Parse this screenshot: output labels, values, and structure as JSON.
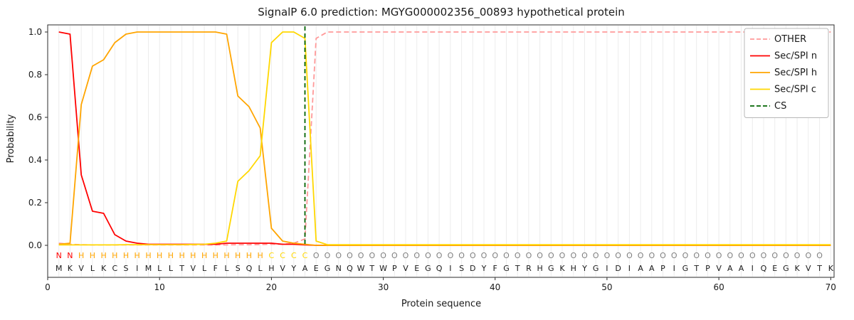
{
  "chart_data": {
    "type": "line",
    "title": "SignalP 6.0 prediction: MGYG000002356_00893 hypothetical protein",
    "xlabel": "Protein sequence",
    "ylabel": "Probability",
    "xlim": [
      0,
      70
    ],
    "ylim": [
      0,
      1
    ],
    "position_range": [
      1,
      70
    ],
    "grid": "vertical line per residue",
    "legend_position": "upper right",
    "x_ticks": [
      0,
      10,
      20,
      30,
      40,
      50,
      60,
      70
    ],
    "y_ticks": [
      0.0,
      0.2,
      0.4,
      0.6,
      0.8,
      1.0
    ],
    "colors": {
      "grid": "#ececec",
      "frame": "#2b2b2b"
    },
    "series": [
      {
        "name": "OTHER",
        "color": "#ff9999",
        "style": "dashed",
        "values": [
          0.01,
          0.005,
          0.003,
          0.002,
          0.002,
          0.002,
          0.002,
          0.002,
          0.002,
          0.002,
          0.002,
          0.002,
          0.002,
          0.002,
          0.002,
          0.002,
          0.003,
          0.003,
          0.004,
          0.005,
          0.005,
          0.01,
          0.03,
          0.97,
          1.0,
          1.0,
          1.0,
          1.0,
          1.0,
          1.0,
          1.0,
          1.0,
          1.0,
          1.0,
          1.0,
          1.0,
          1.0,
          1.0,
          1.0,
          1.0,
          1.0,
          1.0,
          1.0,
          1.0,
          1.0,
          1.0,
          1.0,
          1.0,
          1.0,
          1.0,
          1.0,
          1.0,
          1.0,
          1.0,
          1.0,
          1.0,
          1.0,
          1.0,
          1.0,
          1.0,
          1.0,
          1.0,
          1.0,
          1.0,
          1.0,
          1.0,
          1.0,
          1.0,
          1.0,
          1.0
        ]
      },
      {
        "name": "Sec/SPI n",
        "color": "#ff0000",
        "style": "solid",
        "values": [
          1.0,
          0.99,
          0.33,
          0.16,
          0.15,
          0.05,
          0.02,
          0.01,
          0.005,
          0.005,
          0.005,
          0.005,
          0.005,
          0.005,
          0.005,
          0.01,
          0.01,
          0.01,
          0.01,
          0.01,
          0.005,
          0.005,
          0.002,
          0.0,
          0.0,
          0.0,
          0.0,
          0.0,
          0.0,
          0.0,
          0.0,
          0.0,
          0.0,
          0.0,
          0.0,
          0.0,
          0.0,
          0.0,
          0.0,
          0.0,
          0.0,
          0.0,
          0.0,
          0.0,
          0.0,
          0.0,
          0.0,
          0.0,
          0.0,
          0.0,
          0.0,
          0.0,
          0.0,
          0.0,
          0.0,
          0.0,
          0.0,
          0.0,
          0.0,
          0.0,
          0.0,
          0.0,
          0.0,
          0.0,
          0.0,
          0.0,
          0.0,
          0.0,
          0.0,
          0.0
        ]
      },
      {
        "name": "Sec/SPI h",
        "color": "#ffa500",
        "style": "solid",
        "values": [
          0.005,
          0.01,
          0.66,
          0.84,
          0.87,
          0.95,
          0.99,
          1.0,
          1.0,
          1.0,
          1.0,
          1.0,
          1.0,
          1.0,
          1.0,
          0.99,
          0.7,
          0.65,
          0.55,
          0.08,
          0.02,
          0.01,
          0.005,
          0.0,
          0.0,
          0.0,
          0.0,
          0.0,
          0.0,
          0.0,
          0.0,
          0.0,
          0.0,
          0.0,
          0.0,
          0.0,
          0.0,
          0.0,
          0.0,
          0.0,
          0.0,
          0.0,
          0.0,
          0.0,
          0.0,
          0.0,
          0.0,
          0.0,
          0.0,
          0.0,
          0.0,
          0.0,
          0.0,
          0.0,
          0.0,
          0.0,
          0.0,
          0.0,
          0.0,
          0.0,
          0.0,
          0.0,
          0.0,
          0.0,
          0.0,
          0.0,
          0.0,
          0.0,
          0.0,
          0.0
        ]
      },
      {
        "name": "Sec/SPI c",
        "color": "#ffd700",
        "style": "solid",
        "values": [
          0.002,
          0.002,
          0.002,
          0.002,
          0.002,
          0.002,
          0.003,
          0.003,
          0.003,
          0.003,
          0.003,
          0.003,
          0.004,
          0.005,
          0.01,
          0.02,
          0.3,
          0.35,
          0.42,
          0.95,
          1.0,
          1.0,
          0.97,
          0.02,
          0.003,
          0.003,
          0.003,
          0.003,
          0.003,
          0.003,
          0.003,
          0.003,
          0.003,
          0.003,
          0.003,
          0.003,
          0.003,
          0.003,
          0.003,
          0.003,
          0.003,
          0.003,
          0.003,
          0.003,
          0.003,
          0.003,
          0.003,
          0.003,
          0.003,
          0.003,
          0.003,
          0.003,
          0.003,
          0.003,
          0.003,
          0.003,
          0.003,
          0.003,
          0.003,
          0.003,
          0.003,
          0.003,
          0.003,
          0.003,
          0.003,
          0.003,
          0.003,
          0.003,
          0.003,
          0.003
        ]
      }
    ],
    "cs": {
      "name": "CS",
      "position": 23,
      "color": "#006400",
      "style": "dashed"
    },
    "sequence": "MKVLKCSIMLLTVLFLSQLHVYAEGNQWTWPVEGQISDYFGTRHGKHYGIDIAAPIGTPVAAIQEGKVTK",
    "region_labels": "NNHHHHHHHHHHHHHHHHHCCCCOOOOOOOOOOOOOOOOOOOOOOOOOOOOOOOOOOOOOOOOOOOOOO",
    "region_colors": {
      "N": "#ff0000",
      "H": "#ffa500",
      "C": "#ffd700",
      "O": "#808080"
    },
    "legend": [
      "OTHER",
      "Sec/SPI n",
      "Sec/SPI h",
      "Sec/SPI c",
      "CS"
    ]
  }
}
